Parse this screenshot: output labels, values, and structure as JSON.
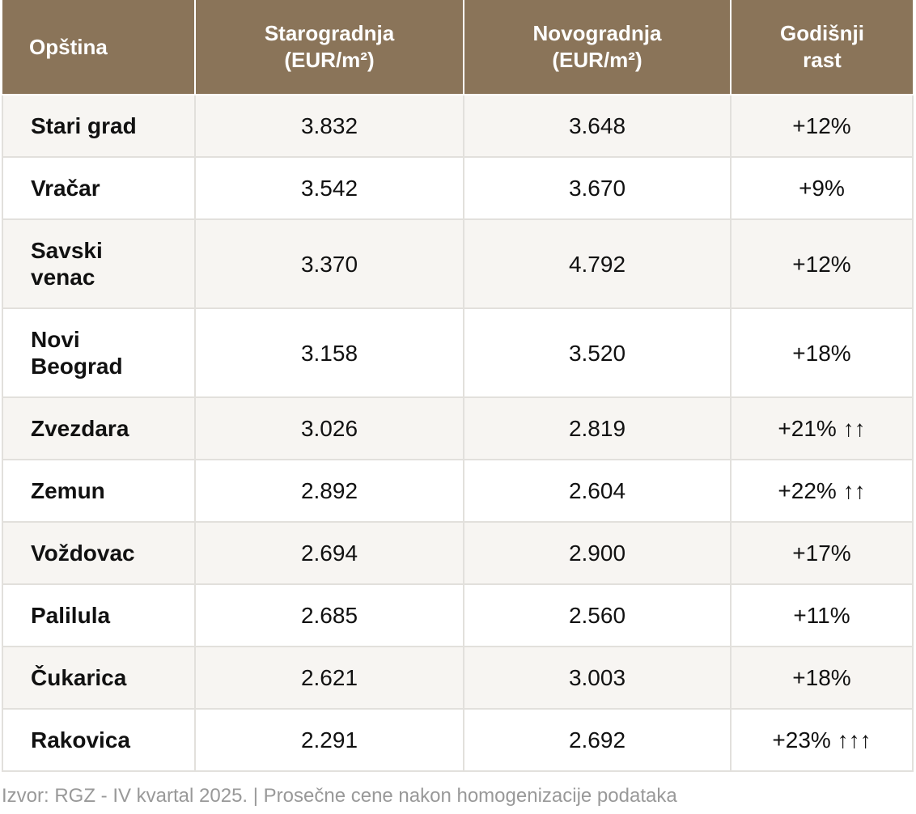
{
  "table": {
    "headers": {
      "municipality": "Opština",
      "old_build": "Starogradnja\n(EUR/m²)",
      "new_build": "Novogradnja\n(EUR/m²)",
      "annual_growth": "Godišnji\nrast"
    },
    "rows": [
      {
        "name": "Stari grad",
        "old": "3.832",
        "new": "3.648",
        "growth": "+12%"
      },
      {
        "name": "Vračar",
        "old": "3.542",
        "new": "3.670",
        "growth": "+9%"
      },
      {
        "name": "Savski\nvenac",
        "old": "3.370",
        "new": "4.792",
        "growth": "+12%"
      },
      {
        "name": "Novi\nBeograd",
        "old": "3.158",
        "new": "3.520",
        "growth": "+18%"
      },
      {
        "name": "Zvezdara",
        "old": "3.026",
        "new": "2.819",
        "growth": "+21% ↑↑"
      },
      {
        "name": "Zemun",
        "old": "2.892",
        "new": "2.604",
        "growth": "+22% ↑↑"
      },
      {
        "name": "Voždovac",
        "old": "2.694",
        "new": "2.900",
        "growth": "+17%"
      },
      {
        "name": "Palilula",
        "old": "2.685",
        "new": "2.560",
        "growth": "+11%"
      },
      {
        "name": "Čukarica",
        "old": "2.621",
        "new": "3.003",
        "growth": "+18%"
      },
      {
        "name": "Rakovica",
        "old": "2.291",
        "new": "2.692",
        "growth": "+23% ↑↑↑"
      }
    ]
  },
  "footer": {
    "source": "Izvor: RGZ - IV kvartal 2025. | Prosečne cene nakon homogenizacije podataka"
  },
  "colors": {
    "header_bg": "#8a7459",
    "header_text": "#ffffff",
    "row_alt_bg": "#f7f5f2",
    "grid_line": "#e2e0dc",
    "footer_text": "#999999"
  }
}
